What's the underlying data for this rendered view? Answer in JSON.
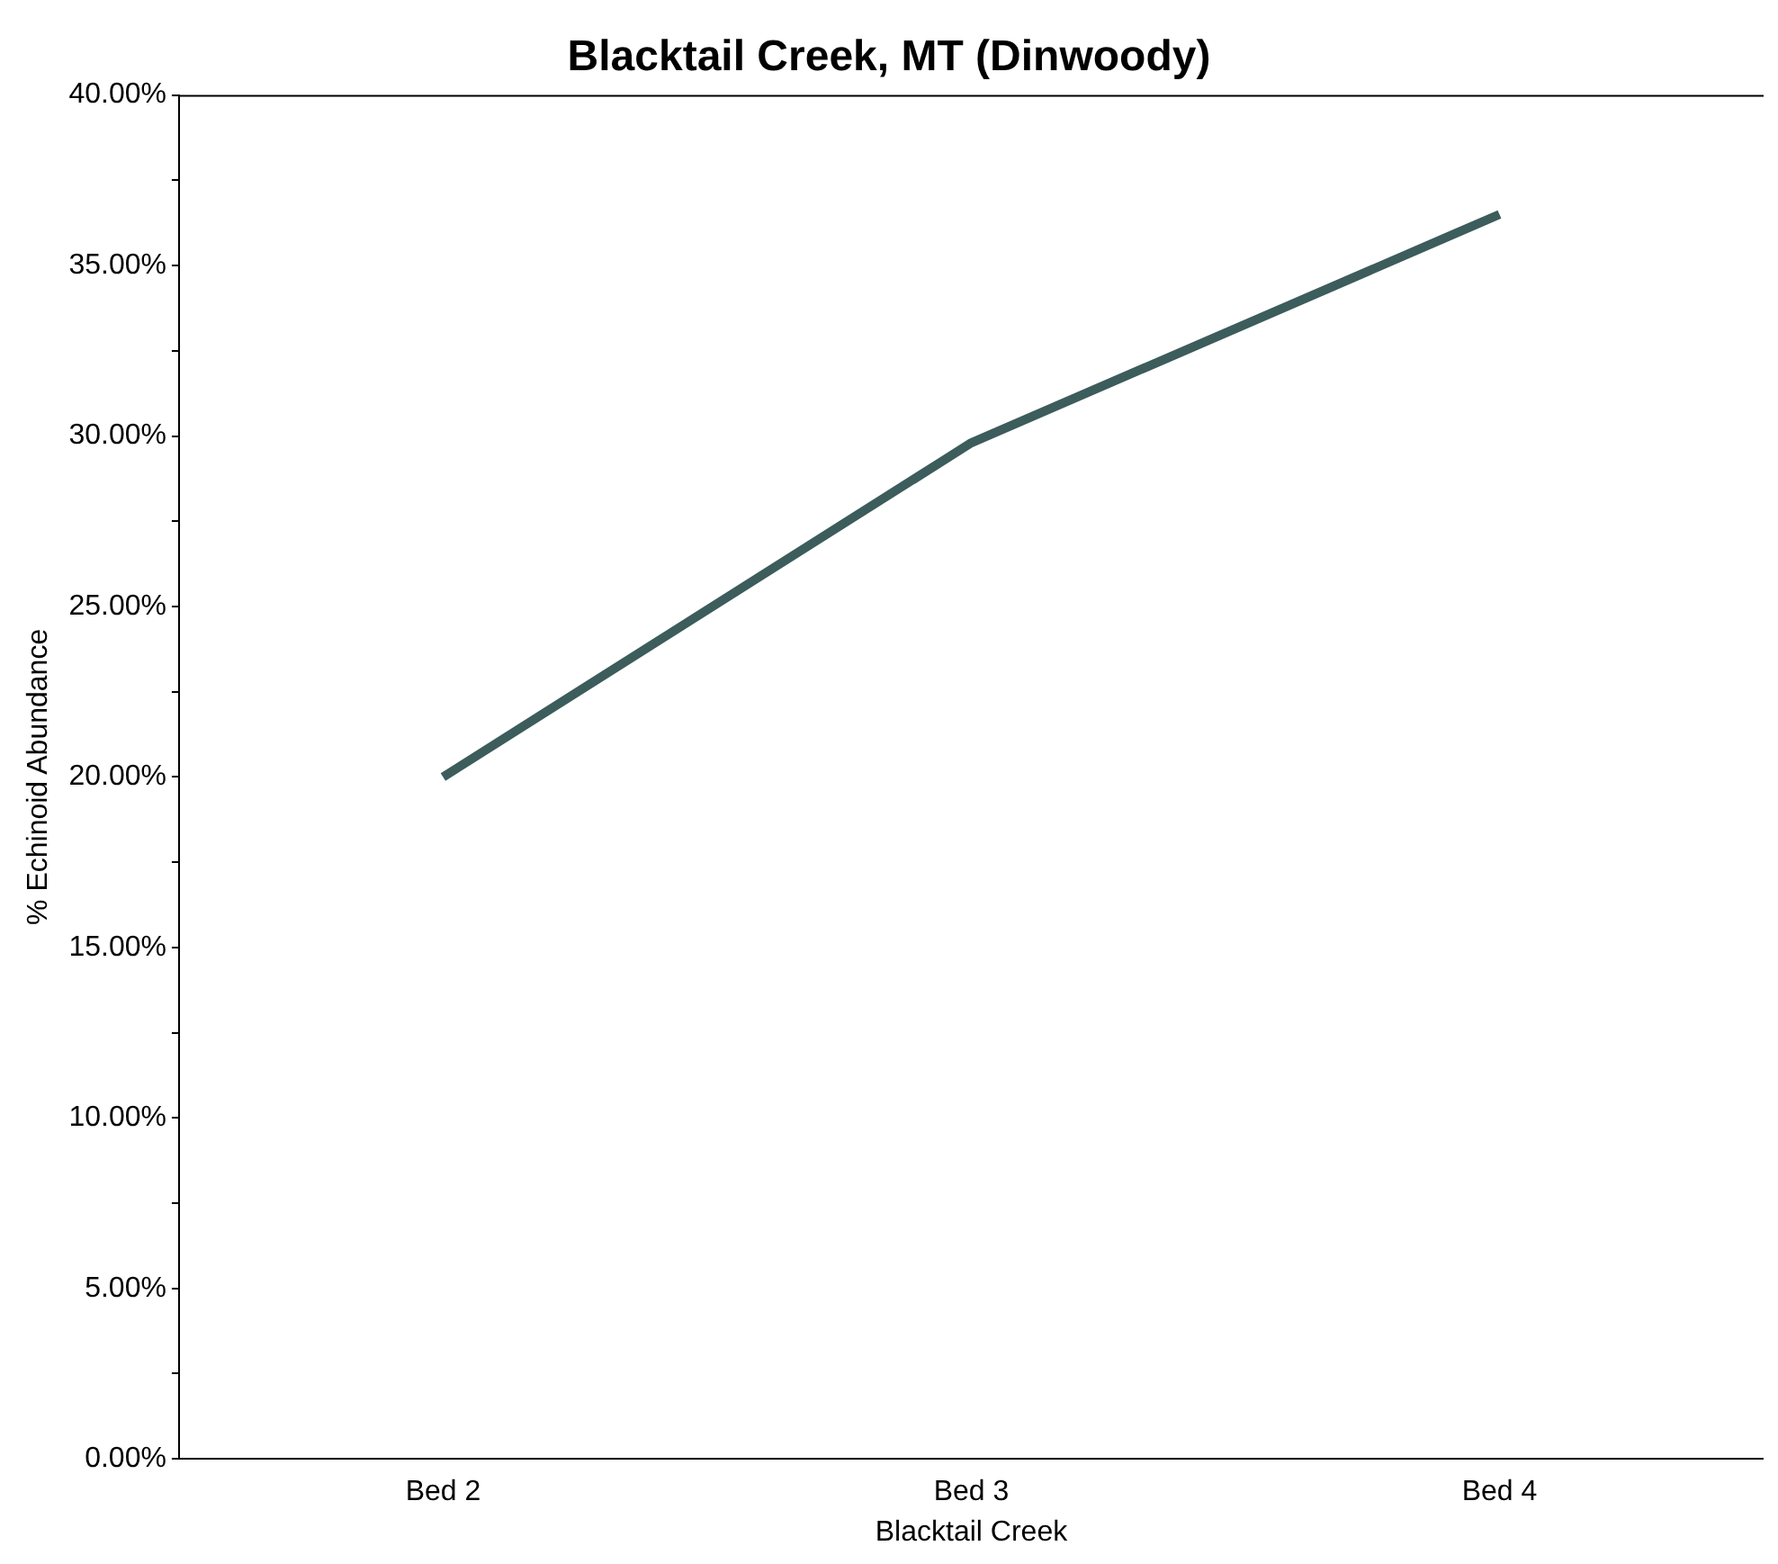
{
  "chart_data": {
    "type": "line",
    "title": "Blacktail Creek, MT (Dinwoody)",
    "xlabel": "Blacktail Creek",
    "ylabel": "% Echinoid Abundance",
    "categories": [
      "Bed 2",
      "Bed 3",
      "Bed 4"
    ],
    "series": [
      {
        "color": "#3d5c5c",
        "values": [
          20.0,
          29.8,
          36.5
        ]
      }
    ],
    "ylim": [
      0,
      40
    ],
    "yticks": [
      {
        "value": 0,
        "label": "0.00%"
      },
      {
        "value": 2.5,
        "label": null
      },
      {
        "value": 5,
        "label": "5.00%"
      },
      {
        "value": 7.5,
        "label": null
      },
      {
        "value": 10,
        "label": "10.00%"
      },
      {
        "value": 12.5,
        "label": null
      },
      {
        "value": 15,
        "label": "15.00%"
      },
      {
        "value": 17.5,
        "label": null
      },
      {
        "value": 20,
        "label": "20.00%"
      },
      {
        "value": 22.5,
        "label": null
      },
      {
        "value": 25,
        "label": "25.00%"
      },
      {
        "value": 27.5,
        "label": null
      },
      {
        "value": 30,
        "label": "30.00%"
      },
      {
        "value": 32.5,
        "label": null
      },
      {
        "value": 35,
        "label": "35.00%"
      },
      {
        "value": 37.5,
        "label": null
      },
      {
        "value": 40,
        "label": "40.00%"
      }
    ],
    "grid": false,
    "legend": false,
    "marker": "none",
    "line_style": "solid"
  }
}
